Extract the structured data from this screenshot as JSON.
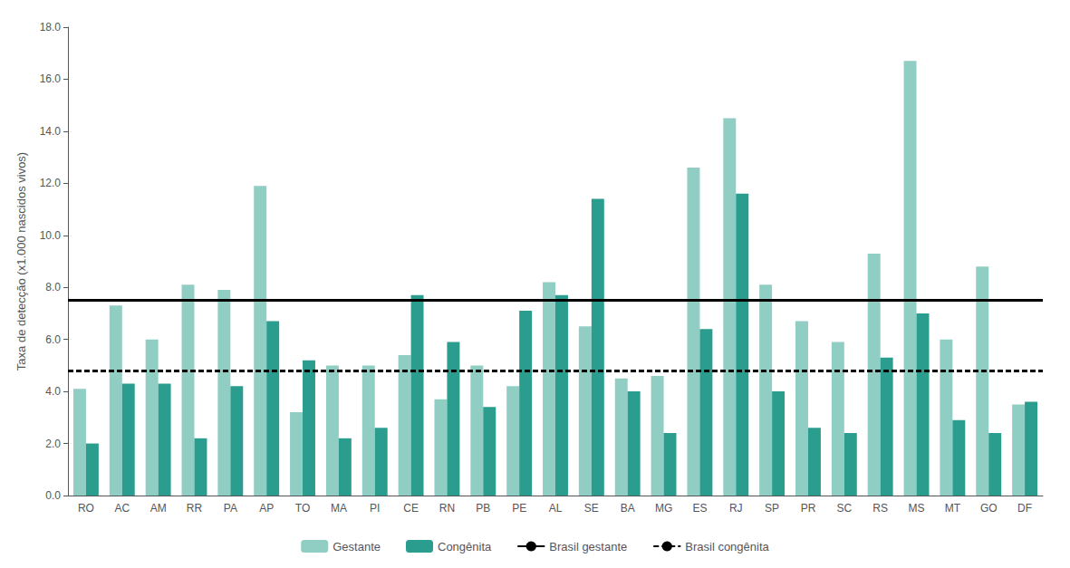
{
  "chart_data": {
    "type": "bar",
    "categories": [
      "RO",
      "AC",
      "AM",
      "RR",
      "PA",
      "AP",
      "TO",
      "MA",
      "PI",
      "CE",
      "RN",
      "PB",
      "PE",
      "AL",
      "SE",
      "BA",
      "MG",
      "ES",
      "RJ",
      "SP",
      "PR",
      "SC",
      "RS",
      "MS",
      "MT",
      "GO",
      "DF"
    ],
    "series": [
      {
        "name": "Gestante",
        "color": "#90cdc3",
        "values": [
          4.1,
          7.3,
          6.0,
          8.1,
          7.9,
          11.9,
          3.2,
          5.0,
          5.0,
          5.4,
          3.7,
          5.0,
          4.2,
          8.2,
          6.5,
          4.5,
          4.6,
          12.6,
          14.5,
          8.1,
          6.7,
          5.9,
          9.3,
          16.7,
          6.0,
          8.8,
          3.5
        ]
      },
      {
        "name": "Congênita",
        "color": "#2a9d8f",
        "values": [
          2.0,
          4.3,
          4.3,
          2.2,
          4.2,
          6.7,
          5.2,
          2.2,
          2.6,
          7.7,
          5.9,
          3.4,
          7.1,
          7.7,
          11.4,
          4.0,
          2.4,
          6.4,
          11.6,
          4.0,
          2.6,
          2.4,
          5.3,
          7.0,
          2.9,
          2.4,
          3.6
        ]
      }
    ],
    "reference_lines": [
      {
        "name": "Brasil gestante",
        "value": 7.5,
        "color": "#000000",
        "line_style": "solid"
      },
      {
        "name": "Brasil congênita",
        "value": 4.8,
        "color": "#000000",
        "line_style": "dashed"
      }
    ],
    "ylabel": "Taxa de detecção (x1.000 nascidos vivos)",
    "ylim": [
      0,
      18.0
    ],
    "yticks": [
      {
        "value": 0.0,
        "label": "0.0"
      },
      {
        "value": 2.0,
        "label": "2.0"
      },
      {
        "value": 4.0,
        "label": "4.0"
      },
      {
        "value": 6.0,
        "label": "6.0"
      },
      {
        "value": 8.0,
        "label": "8.0"
      },
      {
        "value": 10.0,
        "label": "10.0"
      },
      {
        "value": 12.0,
        "label": "12.0"
      },
      {
        "value": 14.0,
        "label": "14.0"
      },
      {
        "value": 16.0,
        "label": "16.0"
      },
      {
        "value": 18.0,
        "label": "18.0"
      }
    ],
    "grid": false,
    "legend": "bottom"
  }
}
